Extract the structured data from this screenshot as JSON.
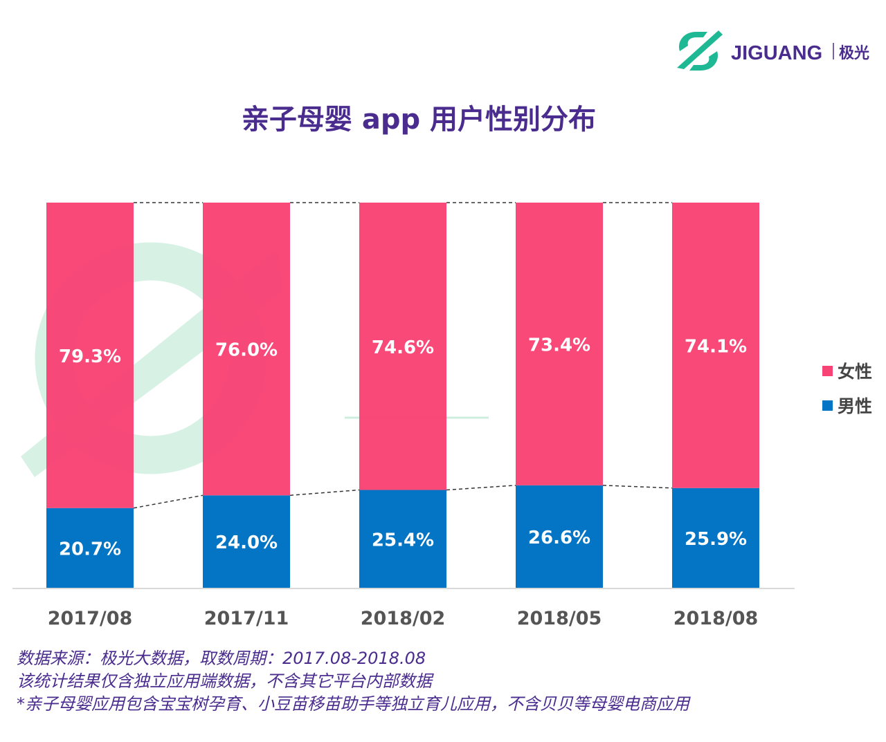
{
  "logo": {
    "brand": "JIGUANG",
    "cn": "极光",
    "color": "#4a2c8f",
    "mark_color": "#1fb894"
  },
  "watermark": {
    "text": "JIGUANG",
    "cn": "极光大数据",
    "color": "#cdeede"
  },
  "title": "亲子母婴 app 用户性别分布",
  "chart_data": {
    "type": "bar",
    "stacked": true,
    "categories": [
      "2017/08",
      "2017/11",
      "2018/02",
      "2018/05",
      "2018/08"
    ],
    "series": [
      {
        "name": "男性",
        "values": [
          20.7,
          24.0,
          25.4,
          26.6,
          25.9
        ],
        "labels": [
          "20.7%",
          "24.0%",
          "25.4%",
          "26.6%",
          "25.9%"
        ],
        "color": "#0474c4"
      },
      {
        "name": "女性",
        "values": [
          79.3,
          76.0,
          74.6,
          73.4,
          74.1
        ],
        "labels": [
          "79.3%",
          "76.0%",
          "74.6%",
          "73.4%",
          "74.1%"
        ],
        "color": "#f84375"
      }
    ],
    "ylim": [
      0,
      100
    ],
    "unit": "%",
    "legend": "right",
    "grid": false
  },
  "notes": [
    "数据来源：极光大数据，取数周期：2017.08-2018.08",
    "该统计结果仅含独立应用端数据，不含其它平台内部数据",
    " *亲子母婴应用包含宝宝树孕育、小豆苗移苗助手等独立育儿应用，不含贝贝等母婴电商应用"
  ]
}
